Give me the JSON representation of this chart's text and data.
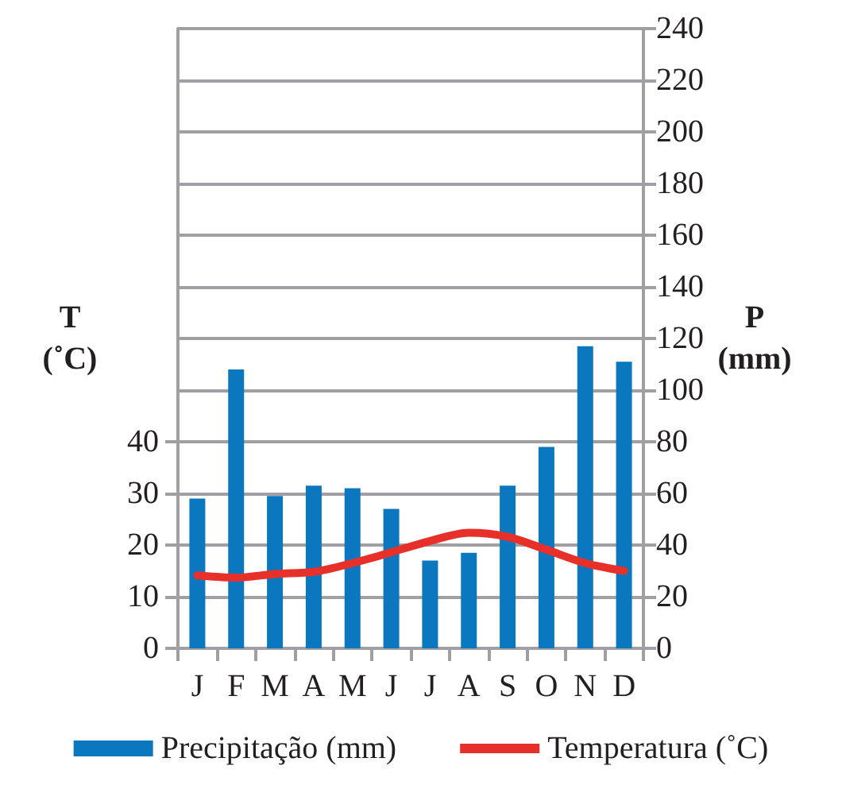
{
  "chart_data": {
    "type": "bar",
    "ylabel": "T\n(˚C)",
    "y2label": "P\n(mm)",
    "categories": [
      "J",
      "F",
      "M",
      "A",
      "M",
      "J",
      "J",
      "A",
      "S",
      "O",
      "N",
      "D"
    ],
    "series": [
      {
        "name": "Precipitação (mm)",
        "axis": "y2",
        "color": "#0a77be",
        "values": [
          58,
          108,
          59,
          63,
          62,
          54,
          34,
          37,
          63,
          78,
          117,
          111
        ]
      },
      {
        "name": "Temperatura (˚C)",
        "type": "line",
        "axis": "y",
        "color": "#e8302b",
        "values": [
          14.1,
          13.7,
          14.4,
          14.8,
          16.5,
          18.6,
          20.8,
          22.4,
          21.6,
          19.1,
          16.5,
          15.0
        ]
      }
    ],
    "ylim": [
      0,
      120
    ],
    "yticks": [
      0,
      10,
      20,
      30,
      40
    ],
    "y2lim": [
      0,
      240
    ],
    "y2ticks": [
      0,
      20,
      40,
      60,
      80,
      100,
      120,
      140,
      160,
      180,
      200,
      220,
      240
    ],
    "grid": "y2",
    "legend": "bottom",
    "marker": "none",
    "line_style": "solid"
  }
}
